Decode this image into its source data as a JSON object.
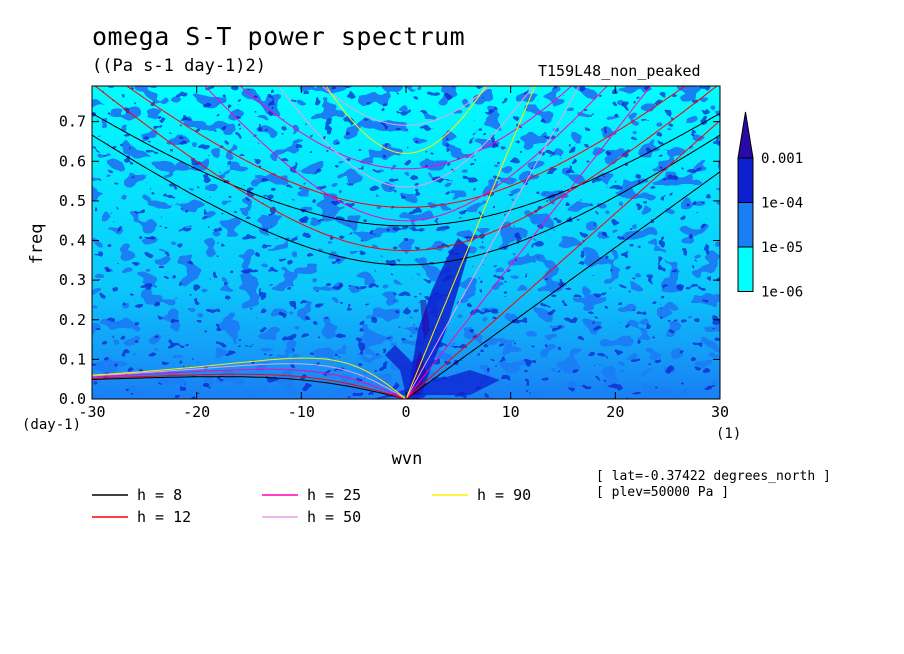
{
  "page": {
    "title": "omega S-T power spectrum",
    "subtitle": "((Pa s-1 day-1)2)",
    "case_id": "T159L48_non_peaked",
    "coords": [
      "[ lat=-0.37422 degrees_north ]",
      "[ plev=50000 Pa ]"
    ]
  },
  "chart_data": {
    "type": "heatmap",
    "title": "omega S-T power spectrum",
    "subtitle": "((Pa s-1 day-1)2)",
    "xlabel": "wvn",
    "ylabel": "freq",
    "x_unit_label": "(1)",
    "y_unit_label": "(day-1)",
    "xlim": [
      -30,
      30
    ],
    "ylim": [
      0,
      0.79
    ],
    "x_ticks": [
      -30,
      -20,
      -10,
      0,
      10,
      20,
      30
    ],
    "x_tick_labels": [
      "-30",
      "-20",
      "-10",
      "0",
      "10",
      "20",
      "30"
    ],
    "y_ticks": [
      0,
      0.1,
      0.2,
      0.3,
      0.4,
      0.5,
      0.6,
      0.7
    ],
    "y_tick_labels": [
      "0.0",
      "0.1",
      "0.2",
      "0.3",
      "0.4",
      "0.5",
      "0.6",
      "0.7"
    ],
    "colorbar": {
      "levels": [
        "1e-06",
        "1e-05",
        "1e-04",
        "0.001"
      ],
      "colors": [
        "#00ffff",
        "#1a7ff5",
        "#0e1fd0",
        "#2a0aa6"
      ]
    },
    "series": [
      {
        "name": "h =  8",
        "color": "#000000"
      },
      {
        "name": "h = 12",
        "color": "#ff0000"
      },
      {
        "name": "h = 25",
        "color": "#ff00bb"
      },
      {
        "name": "h = 50",
        "color": "#e8a0e8"
      },
      {
        "name": "h = 90",
        "color": "#ffee00"
      }
    ]
  }
}
